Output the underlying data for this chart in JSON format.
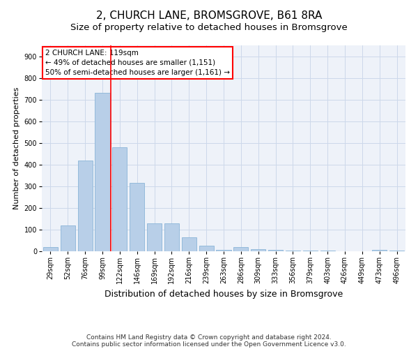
{
  "title": "2, CHURCH LANE, BROMSGROVE, B61 8RA",
  "subtitle": "Size of property relative to detached houses in Bromsgrove",
  "xlabel": "Distribution of detached houses by size in Bromsgrove",
  "ylabel": "Number of detached properties",
  "categories": [
    "29sqm",
    "52sqm",
    "76sqm",
    "99sqm",
    "122sqm",
    "146sqm",
    "169sqm",
    "192sqm",
    "216sqm",
    "239sqm",
    "263sqm",
    "286sqm",
    "309sqm",
    "333sqm",
    "356sqm",
    "379sqm",
    "403sqm",
    "426sqm",
    "449sqm",
    "473sqm",
    "496sqm"
  ],
  "values": [
    20,
    120,
    420,
    730,
    480,
    315,
    130,
    130,
    65,
    25,
    5,
    20,
    10,
    5,
    4,
    3,
    2,
    1,
    0,
    7,
    2
  ],
  "bar_color": "#b8cfe8",
  "bar_edgecolor": "#8ab4d8",
  "red_line_index": 3.5,
  "annotation_line1": "2 CHURCH LANE: 119sqm",
  "annotation_line2": "← 49% of detached houses are smaller (1,151)",
  "annotation_line3": "50% of semi-detached houses are larger (1,161) →",
  "ylim": [
    0,
    950
  ],
  "yticks": [
    0,
    100,
    200,
    300,
    400,
    500,
    600,
    700,
    800,
    900
  ],
  "grid_color": "#ccd8ea",
  "background_color": "#eef2f9",
  "footer_line1": "Contains HM Land Registry data © Crown copyright and database right 2024.",
  "footer_line2": "Contains public sector information licensed under the Open Government Licence v3.0.",
  "title_fontsize": 11,
  "subtitle_fontsize": 9.5,
  "xlabel_fontsize": 9,
  "ylabel_fontsize": 8,
  "tick_fontsize": 7,
  "annotation_fontsize": 7.5,
  "footer_fontsize": 6.5
}
